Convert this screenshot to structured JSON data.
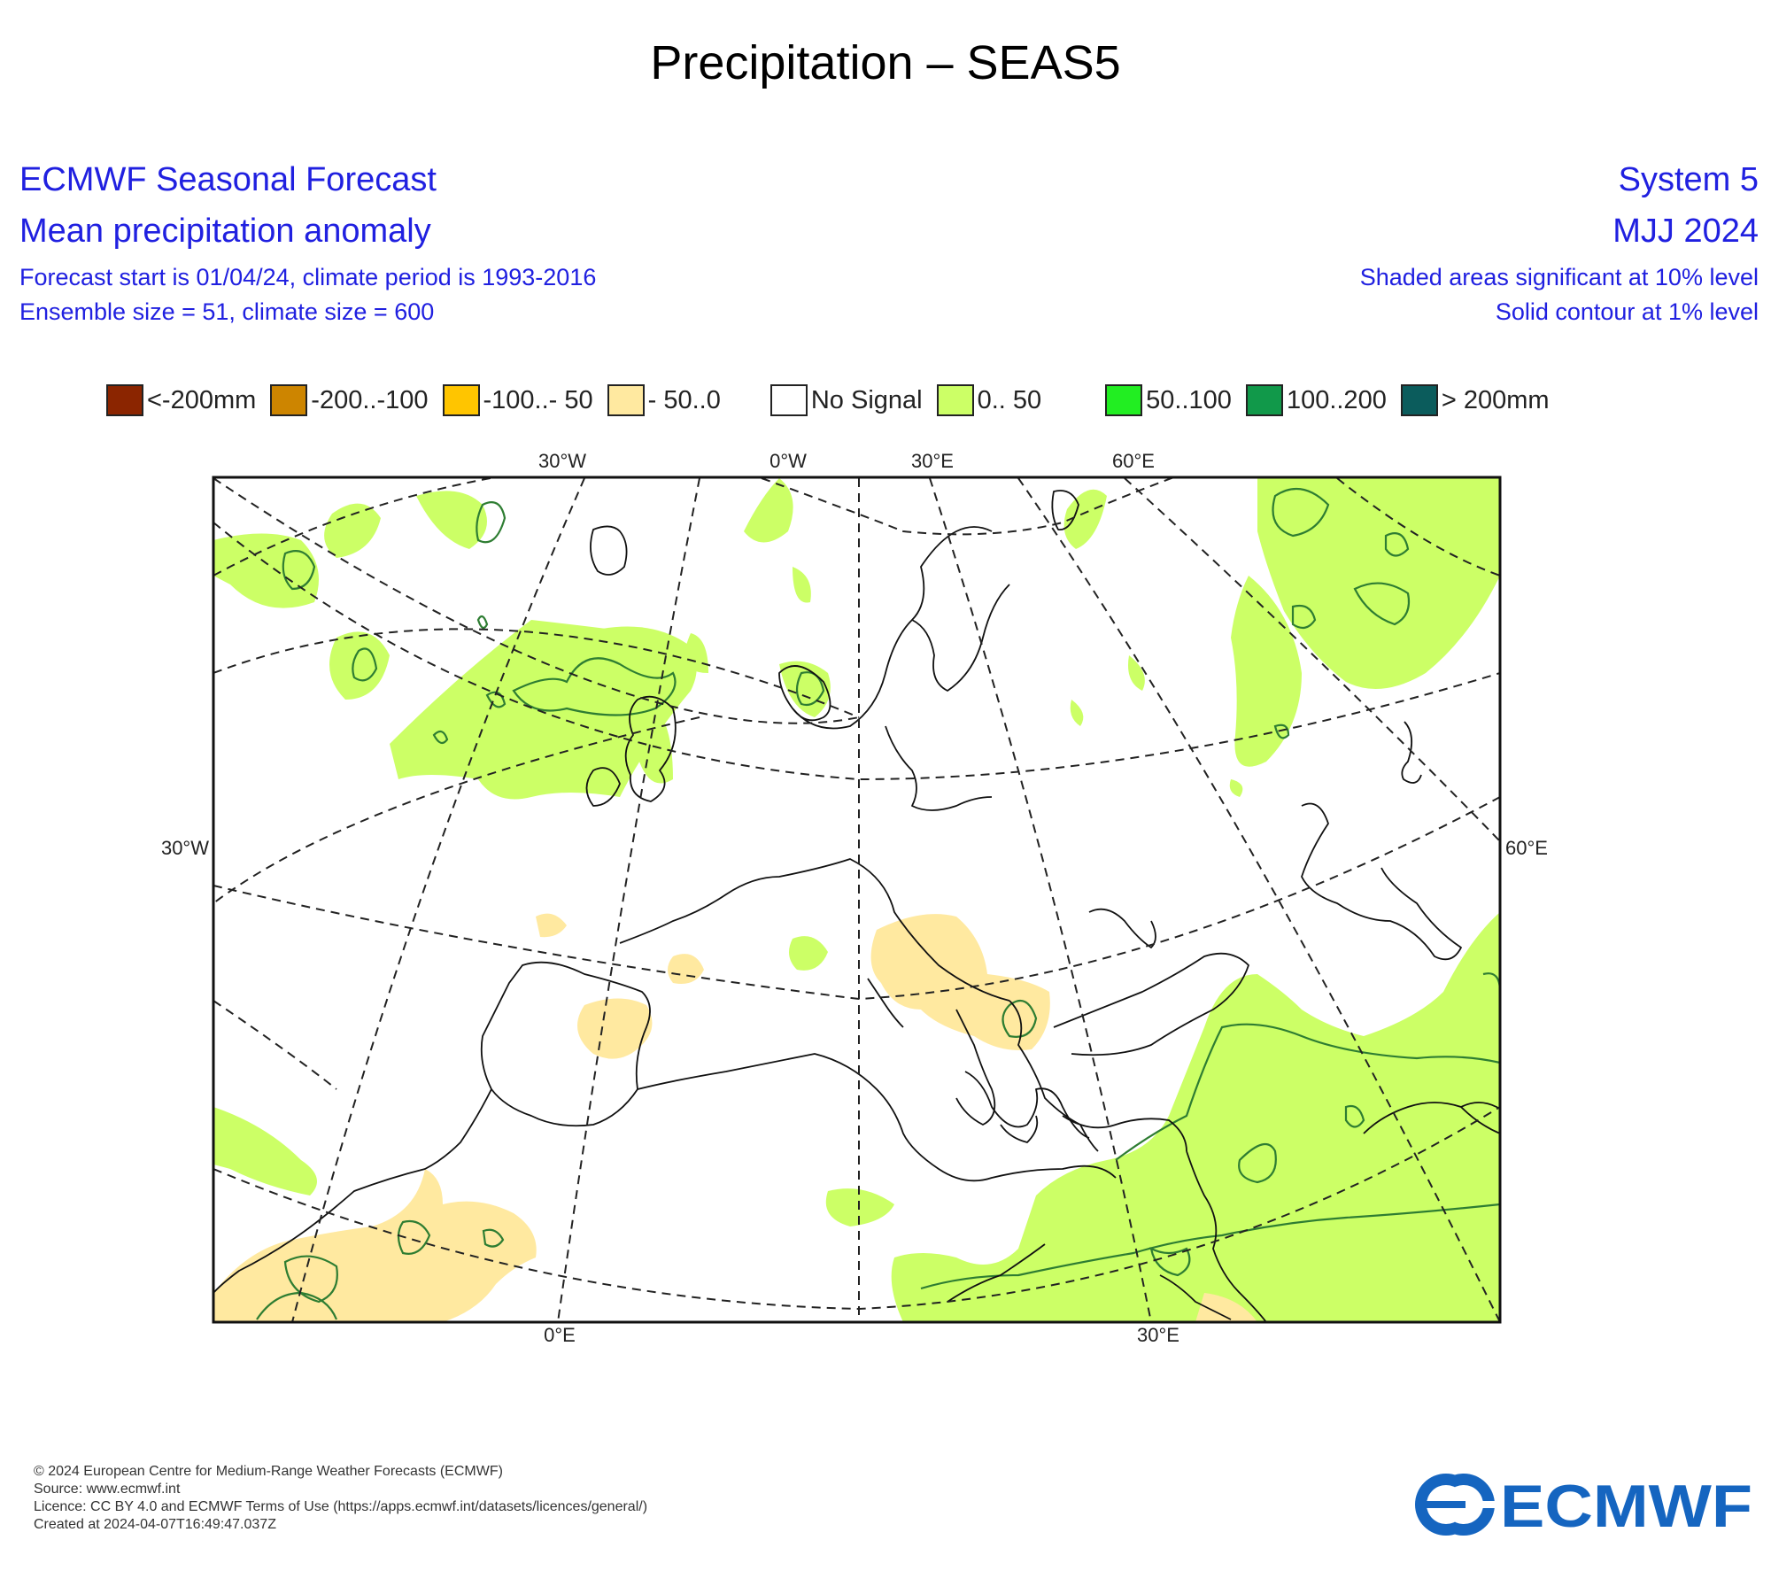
{
  "title": "Precipitation – SEAS5",
  "header": {
    "left": [
      "ECMWF Seasonal Forecast",
      "Mean precipitation anomaly",
      "Forecast start is 01/04/24, climate period is 1993-2016",
      "Ensemble size = 51, climate size = 600"
    ],
    "right": [
      "System 5",
      "MJJ 2024",
      "Shaded areas significant at 10% level",
      "Solid contour at 1% level"
    ]
  },
  "legend": [
    {
      "label": "<-200mm",
      "color": "#8b2500"
    },
    {
      "label": "-200..-100",
      "color": "#cd8500"
    },
    {
      "label": "-100..- 50",
      "color": "#ffc500"
    },
    {
      "label": "- 50..0",
      "color": "#ffe9a0"
    },
    {
      "label": "No Signal",
      "color": "#ffffff"
    },
    {
      "label": "0.. 50",
      "color": "#ccff66"
    },
    {
      "label": "50..100",
      "color": "#22ee22"
    },
    {
      "label": "100..200",
      "color": "#11994a"
    },
    {
      "label": "> 200mm",
      "color": "#0b5c5c"
    }
  ],
  "map": {
    "top_labels": [
      "30°W",
      "0°W",
      "30°E",
      "60°E"
    ],
    "left_label": "30°W",
    "right_label": "60°E",
    "bottom_labels": [
      "0°E",
      "30°E"
    ]
  },
  "footer": [
    "© 2024 European Centre for Medium-Range Weather Forecasts (ECMWF)",
    "Source: www.ecmwf.int",
    "Licence: CC BY 4.0 and ECMWF Terms of Use (https://apps.ecmwf.int/datasets/licences/general/)",
    "Created at 2024-04-07T16:49:47.037Z"
  ],
  "logo_text": "ECMWF",
  "colors": {
    "header_text": "#2020e0",
    "wet_shade": "#ccff66",
    "dry_shade": "#ffe9a0",
    "contour_1pct": "#2e7d32",
    "logo_blue": "#1565c0"
  }
}
